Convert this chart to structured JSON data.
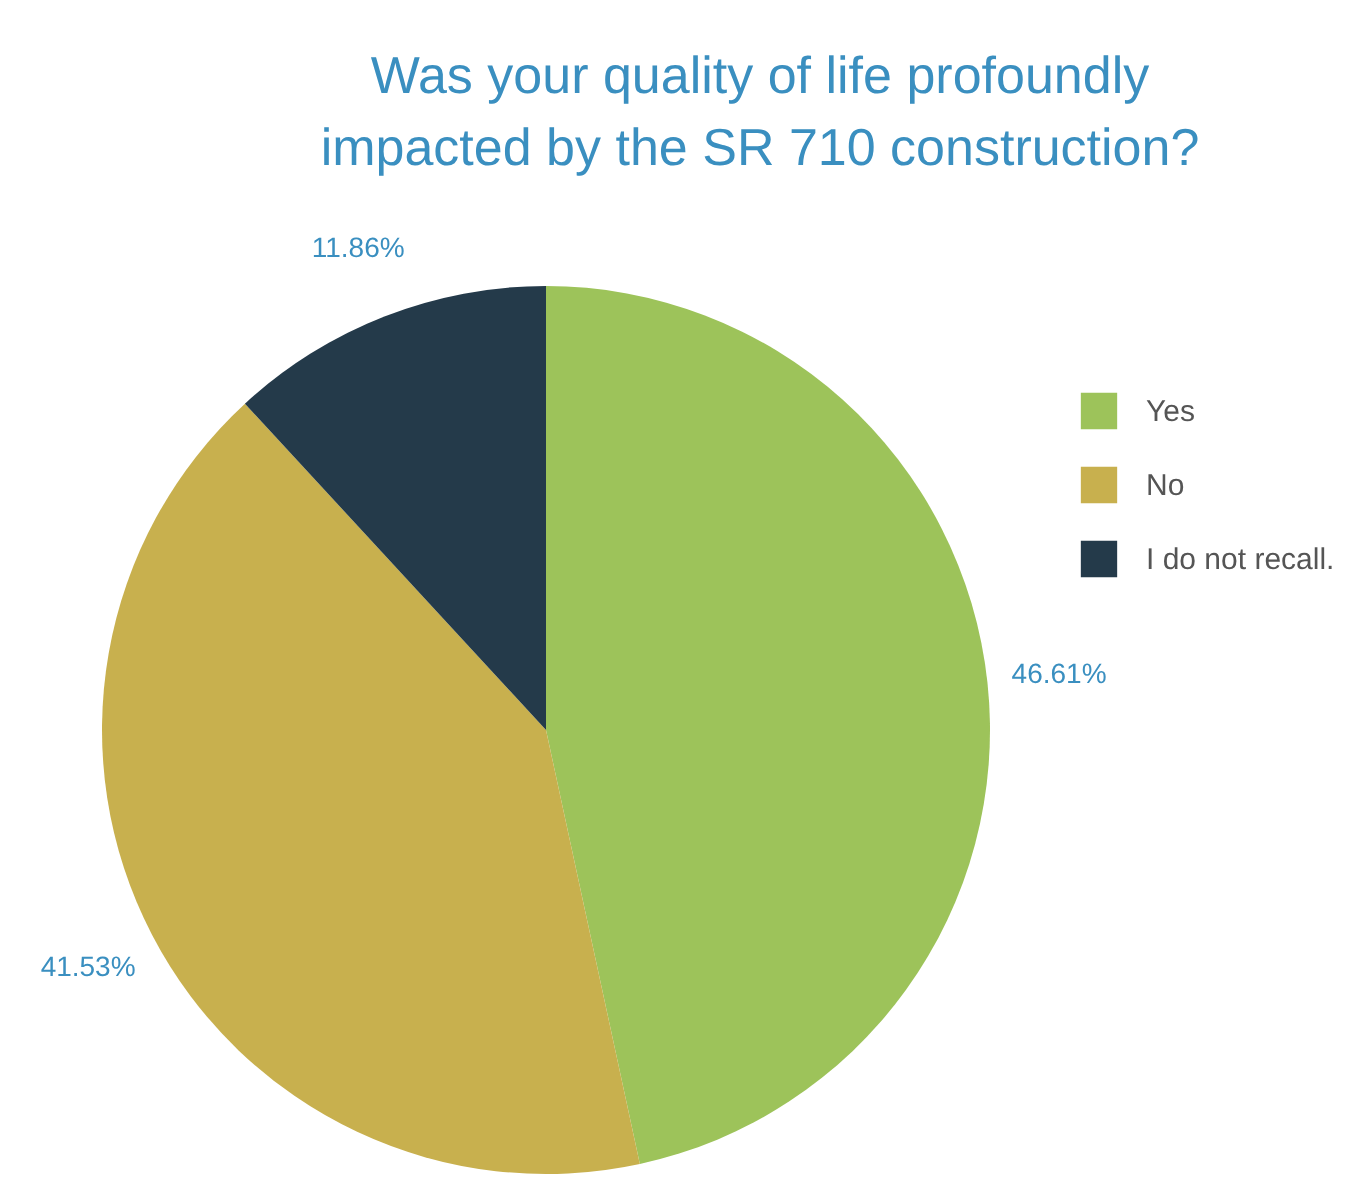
{
  "chart_data": {
    "type": "pie",
    "title": "Was your quality of life profoundly impacted by the SR 710 construction?",
    "categories": [
      "Yes",
      "No",
      "I do not recall."
    ],
    "values": [
      46.61,
      41.53,
      11.86
    ],
    "colors": [
      "#9dc35a",
      "#c8b04e",
      "#243a4a"
    ],
    "value_labels": [
      "46.61%",
      "41.53%",
      "11.86%"
    ],
    "legend": "right"
  }
}
